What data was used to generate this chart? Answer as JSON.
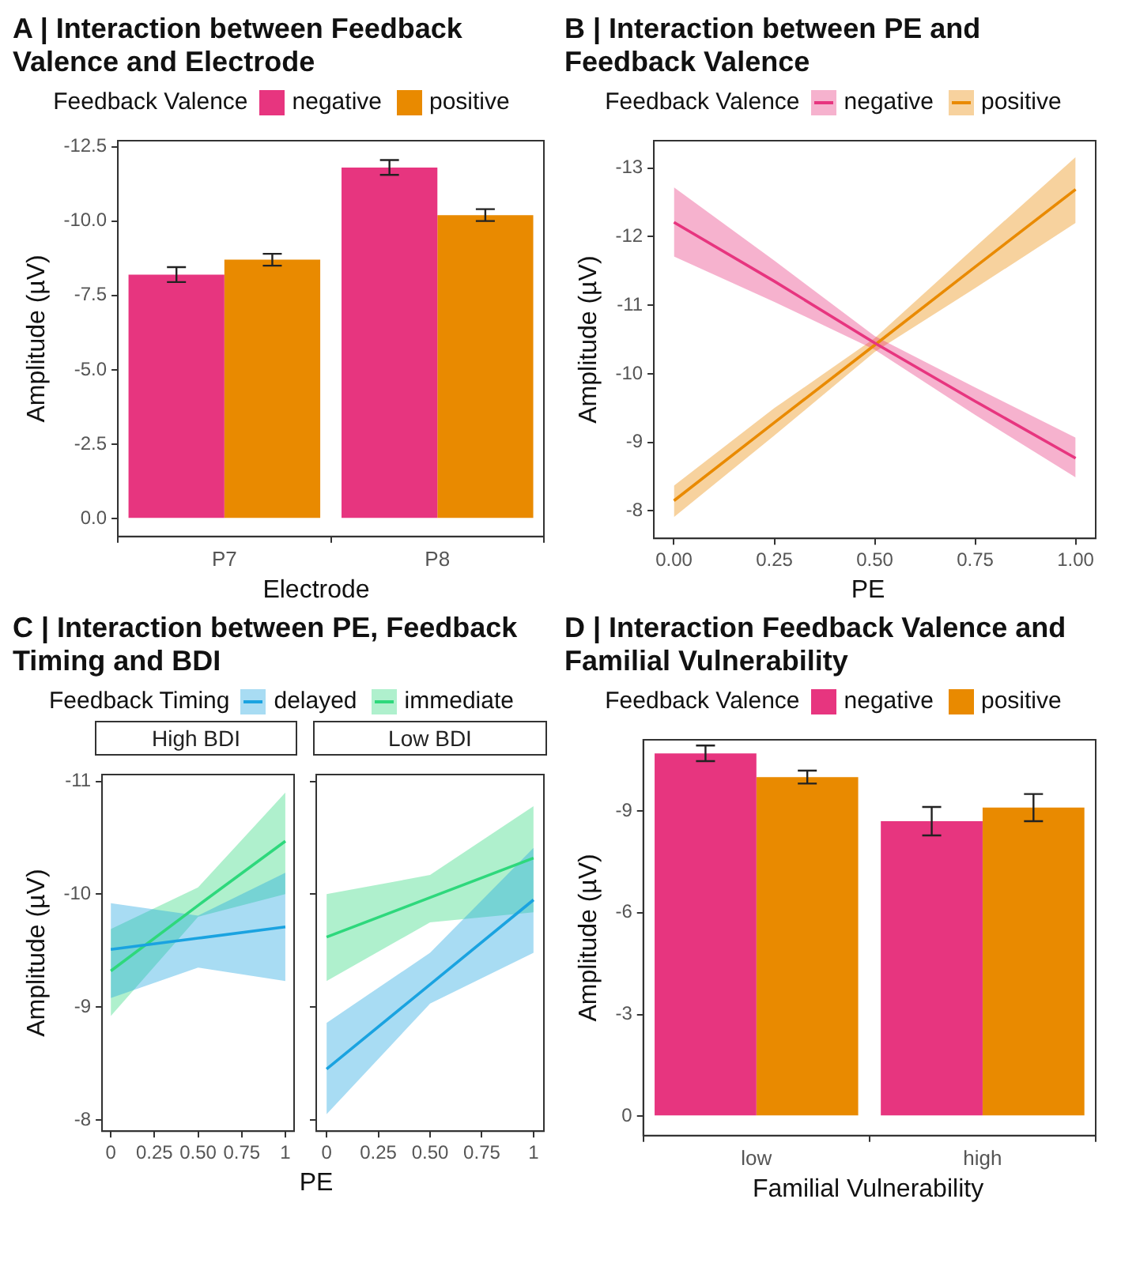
{
  "chart_data": [
    {
      "type": "bar",
      "title": "A | Interaction between Feedback Valence and Electrode",
      "legend_title": "Feedback Valence",
      "legend": "top",
      "xlabel": "Electrode",
      "ylabel": "Amplitude (µV)",
      "categories": [
        "P7",
        "P8"
      ],
      "series": [
        {
          "name": "negative",
          "color": "#e7357f",
          "values": [
            -8.2,
            -11.8
          ],
          "errors": [
            0.25,
            0.25
          ]
        },
        {
          "name": "positive",
          "color": "#e98a00",
          "values": [
            -8.7,
            -10.2
          ],
          "errors": [
            0.2,
            0.2
          ]
        }
      ],
      "ylim": [
        0.6,
        -12.7
      ],
      "yticks": [
        {
          "value": 0,
          "label": "0.0"
        },
        -2.5,
        {
          "value": -5,
          "label": "-5.0"
        },
        -7.5,
        {
          "value": -10,
          "label": "-10.0"
        },
        -12.5
      ]
    },
    {
      "type": "line",
      "title": "B | Interaction between PE and Feedback Valence",
      "legend_title": "Feedback Valence",
      "legend": "top",
      "xlabel": "PE",
      "ylabel": "Amplitude (µV)",
      "x": [
        0,
        0.25,
        0.5,
        0.75,
        1
      ],
      "series": [
        {
          "name": "negative",
          "color": "#e7357f",
          "values": [
            -12.21,
            -11.35,
            -10.45,
            -9.6,
            -8.77
          ],
          "lower": [
            -12.72,
            -11.65,
            -10.55,
            -9.8,
            -9.07
          ],
          "upper": [
            -11.71,
            -11.05,
            -10.35,
            -9.4,
            -8.49
          ]
        },
        {
          "name": "positive",
          "color": "#e98a00",
          "values": [
            -8.15,
            -9.29,
            -10.42,
            -11.56,
            -12.69
          ],
          "lower": [
            -8.37,
            -9.5,
            -10.52,
            -11.85,
            -13.16
          ],
          "upper": [
            -7.91,
            -9.1,
            -10.32,
            -11.25,
            -12.2
          ]
        }
      ],
      "xlim": [
        -0.05,
        1.05
      ],
      "xticks": [
        {
          "value": 0,
          "label": "0.00"
        },
        0.25,
        {
          "value": 0.5,
          "label": "0.50"
        },
        0.75,
        {
          "value": 1,
          "label": "1.00"
        }
      ],
      "ylim": [
        -7.6,
        -13.4
      ],
      "yticks": [
        -8,
        -9,
        -10,
        -11,
        -12,
        -13
      ]
    },
    {
      "type": "line",
      "title": "C | Interaction between PE, Feedback Timing and BDI",
      "subtitle": "High BDI",
      "legend_title": "Feedback Timing",
      "legend": "top",
      "xlabel": "PE",
      "ylabel": "Amplitude (µV)",
      "x": [
        0,
        0.5,
        1
      ],
      "series": [
        {
          "name": "delayed",
          "color": "#1aa3e0",
          "values": [
            -9.51,
            -9.61,
            -9.71
          ],
          "lower": [
            -9.92,
            -9.81,
            -10.19
          ],
          "upper": [
            -9.08,
            -9.35,
            -9.23
          ]
        },
        {
          "name": "immediate",
          "color": "#2ed87c",
          "values": [
            -9.32,
            -9.9,
            -10.47
          ],
          "lower": [
            -9.69,
            -10.06,
            -10.9
          ],
          "upper": [
            -8.92,
            -9.8,
            -10.0
          ]
        }
      ],
      "xlim": [
        -0.05,
        1.05
      ],
      "xticks": [
        0,
        0.25,
        {
          "value": 0.5,
          "label": "0.50"
        },
        0.75,
        1
      ],
      "ylim": [
        -7.9,
        -11.06
      ],
      "yticks": [
        -8,
        -9,
        -10,
        -11
      ]
    },
    {
      "type": "line",
      "subtitle": "Low BDI",
      "tick_labels": "x",
      "x": [
        0,
        0.5,
        1
      ],
      "series": [
        {
          "color": "#1aa3e0",
          "values": [
            -8.45,
            -9.2,
            -9.95
          ],
          "lower": [
            -8.86,
            -9.48,
            -10.41
          ],
          "upper": [
            -8.05,
            -9.03,
            -9.48
          ]
        },
        {
          "color": "#2ed87c",
          "values": [
            -9.62,
            -9.97,
            -10.32
          ],
          "lower": [
            -10.0,
            -10.17,
            -10.78
          ],
          "upper": [
            -9.23,
            -9.75,
            -9.84
          ]
        }
      ],
      "xlim": [
        -0.05,
        1.05
      ],
      "xticks": [
        0,
        0.25,
        {
          "value": 0.5,
          "label": "0.50"
        },
        0.75,
        1
      ],
      "ylim": [
        -7.9,
        -11.06
      ],
      "yticks": [
        -8,
        -9,
        -10,
        -11
      ]
    },
    {
      "type": "bar",
      "title": "D | Interaction Feedback Valence and Familial Vulnerability",
      "legend_title": "Feedback Valence",
      "legend": "top",
      "xlabel": "Familial Vulnerability",
      "ylabel": "Amplitude (µV)",
      "categories": [
        "low",
        "high"
      ],
      "series": [
        {
          "name": "negative",
          "color": "#e7357f",
          "values": [
            -10.7,
            -8.7
          ],
          "errors": [
            0.23,
            0.42
          ]
        },
        {
          "name": "positive",
          "color": "#e98a00",
          "values": [
            -10.0,
            -9.1
          ],
          "errors": [
            0.19,
            0.4
          ]
        }
      ],
      "ylim": [
        0.57,
        -11.1
      ],
      "yticks": [
        0,
        -3,
        -6,
        -9
      ]
    }
  ]
}
